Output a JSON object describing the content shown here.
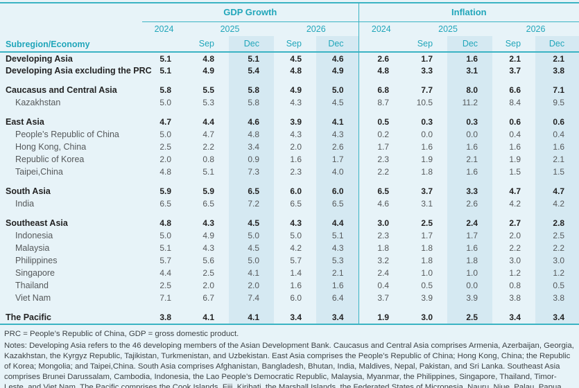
{
  "colors": {
    "accent_teal": "#21a6ba",
    "rule_teal": "#3ab3c3",
    "page_background": "#e7f3f8",
    "dec_column_band": "#d5e9f2",
    "group_row_text": "#232323",
    "member_row_text": "#55585a"
  },
  "table": {
    "corner_label": "Subregion/Economy",
    "group_headers": [
      "GDP Growth",
      "Inflation"
    ],
    "years": [
      "2024",
      "2025",
      "2026"
    ],
    "months": [
      "Sep",
      "Dec"
    ],
    "column_order_note": "values arrays are [2024, 2025 Sep, 2025 Dec, 2026 Sep, 2026 Dec]",
    "rows": [
      {
        "label": "Developing Asia",
        "bold": true,
        "indent": false,
        "section_break": false,
        "gdp": [
          "5.1",
          "4.8",
          "5.1",
          "4.5",
          "4.6"
        ],
        "inflation": [
          "2.6",
          "1.7",
          "1.6",
          "2.1",
          "2.1"
        ]
      },
      {
        "label": "Developing Asia excluding the PRC",
        "bold": true,
        "indent": false,
        "section_break": false,
        "gdp": [
          "5.1",
          "4.9",
          "5.4",
          "4.8",
          "4.9"
        ],
        "inflation": [
          "4.8",
          "3.3",
          "3.1",
          "3.7",
          "3.8"
        ]
      },
      {
        "label": "Caucasus and Central Asia",
        "bold": true,
        "indent": false,
        "section_break": true,
        "gdp": [
          "5.8",
          "5.5",
          "5.8",
          "4.9",
          "5.0"
        ],
        "inflation": [
          "6.8",
          "7.7",
          "8.0",
          "6.6",
          "7.1"
        ]
      },
      {
        "label": "Kazakhstan",
        "bold": false,
        "indent": true,
        "section_break": false,
        "gdp": [
          "5.0",
          "5.3",
          "5.8",
          "4.3",
          "4.5"
        ],
        "inflation": [
          "8.7",
          "10.5",
          "11.2",
          "8.4",
          "9.5"
        ]
      },
      {
        "label": "East Asia",
        "bold": true,
        "indent": false,
        "section_break": true,
        "gdp": [
          "4.7",
          "4.4",
          "4.6",
          "3.9",
          "4.1"
        ],
        "inflation": [
          "0.5",
          "0.3",
          "0.3",
          "0.6",
          "0.6"
        ]
      },
      {
        "label": "People’s Republic of China",
        "bold": false,
        "indent": true,
        "section_break": false,
        "gdp": [
          "5.0",
          "4.7",
          "4.8",
          "4.3",
          "4.3"
        ],
        "inflation": [
          "0.2",
          "0.0",
          "0.0",
          "0.4",
          "0.4"
        ]
      },
      {
        "label": "Hong Kong, China",
        "bold": false,
        "indent": true,
        "section_break": false,
        "gdp": [
          "2.5",
          "2.2",
          "3.4",
          "2.0",
          "2.6"
        ],
        "inflation": [
          "1.7",
          "1.6",
          "1.6",
          "1.6",
          "1.6"
        ]
      },
      {
        "label": "Republic of Korea",
        "bold": false,
        "indent": true,
        "section_break": false,
        "gdp": [
          "2.0",
          "0.8",
          "0.9",
          "1.6",
          "1.7"
        ],
        "inflation": [
          "2.3",
          "1.9",
          "2.1",
          "1.9",
          "2.1"
        ]
      },
      {
        "label": "Taipei,China",
        "bold": false,
        "indent": true,
        "section_break": false,
        "gdp": [
          "4.8",
          "5.1",
          "7.3",
          "2.3",
          "4.0"
        ],
        "inflation": [
          "2.2",
          "1.8",
          "1.6",
          "1.5",
          "1.5"
        ]
      },
      {
        "label": "South Asia",
        "bold": true,
        "indent": false,
        "section_break": true,
        "gdp": [
          "5.9",
          "5.9",
          "6.5",
          "6.0",
          "6.0"
        ],
        "inflation": [
          "6.5",
          "3.7",
          "3.3",
          "4.7",
          "4.7"
        ]
      },
      {
        "label": "India",
        "bold": false,
        "indent": true,
        "section_break": false,
        "gdp": [
          "6.5",
          "6.5",
          "7.2",
          "6.5",
          "6.5"
        ],
        "inflation": [
          "4.6",
          "3.1",
          "2.6",
          "4.2",
          "4.2"
        ]
      },
      {
        "label": "Southeast Asia",
        "bold": true,
        "indent": false,
        "section_break": true,
        "gdp": [
          "4.8",
          "4.3",
          "4.5",
          "4.3",
          "4.4"
        ],
        "inflation": [
          "3.0",
          "2.5",
          "2.4",
          "2.7",
          "2.8"
        ]
      },
      {
        "label": "Indonesia",
        "bold": false,
        "indent": true,
        "section_break": false,
        "gdp": [
          "5.0",
          "4.9",
          "5.0",
          "5.0",
          "5.1"
        ],
        "inflation": [
          "2.3",
          "1.7",
          "1.7",
          "2.0",
          "2.5"
        ]
      },
      {
        "label": "Malaysia",
        "bold": false,
        "indent": true,
        "section_break": false,
        "gdp": [
          "5.1",
          "4.3",
          "4.5",
          "4.2",
          "4.3"
        ],
        "inflation": [
          "1.8",
          "1.8",
          "1.6",
          "2.2",
          "2.2"
        ]
      },
      {
        "label": "Philippines",
        "bold": false,
        "indent": true,
        "section_break": false,
        "gdp": [
          "5.7",
          "5.6",
          "5.0",
          "5.7",
          "5.3"
        ],
        "inflation": [
          "3.2",
          "1.8",
          "1.8",
          "3.0",
          "3.0"
        ]
      },
      {
        "label": "Singapore",
        "bold": false,
        "indent": true,
        "section_break": false,
        "gdp": [
          "4.4",
          "2.5",
          "4.1",
          "1.4",
          "2.1"
        ],
        "inflation": [
          "2.4",
          "1.0",
          "1.0",
          "1.2",
          "1.2"
        ]
      },
      {
        "label": "Thailand",
        "bold": false,
        "indent": true,
        "section_break": false,
        "gdp": [
          "2.5",
          "2.0",
          "2.0",
          "1.6",
          "1.6"
        ],
        "inflation": [
          "0.4",
          "0.5",
          "0.0",
          "0.8",
          "0.5"
        ]
      },
      {
        "label": "Viet Nam",
        "bold": false,
        "indent": true,
        "section_break": false,
        "gdp": [
          "7.1",
          "6.7",
          "7.4",
          "6.0",
          "6.4"
        ],
        "inflation": [
          "3.7",
          "3.9",
          "3.9",
          "3.8",
          "3.8"
        ]
      },
      {
        "label": "The Pacific",
        "bold": true,
        "indent": false,
        "section_break": true,
        "gdp": [
          "3.8",
          "4.1",
          "4.1",
          "3.4",
          "3.4"
        ],
        "inflation": [
          "1.9",
          "3.0",
          "2.5",
          "3.4",
          "3.4"
        ]
      }
    ]
  },
  "footer": {
    "abbreviations": "PRC = People’s Republic of China, GDP = gross domestic product.",
    "notes": "Notes: Developing Asia refers to the 46 developing members of the Asian Development Bank. Caucasus and Central Asia comprises Armenia, Azerbaijan, Georgia, Kazakhstan, the Kyrgyz Republic, Tajikistan, Turkmenistan, and Uzbekistan. East Asia comprises the People’s Republic of China; Hong Kong, China; the Republic of Korea; Mongolia; and Taipei,China. South Asia comprises Afghanistan, Bangladesh, Bhutan, India, Maldives, Nepal, Pakistan, and Sri Lanka. Southeast Asia comprises Brunei Darussalam, Cambodia, Indonesia, the Lao People’s Democratic Republic, Malaysia, Myanmar, the Philippines, Singapore, Thailand, Timor-Leste, and Viet Nam. The Pacific comprises the Cook Islands, Fiji, Kiribati, the Marshall Islands, the Federated States of Micronesia, Nauru, Niue, Palau, Papua New Guinea, Samoa, Solomon Islands, Tonga,"
  }
}
